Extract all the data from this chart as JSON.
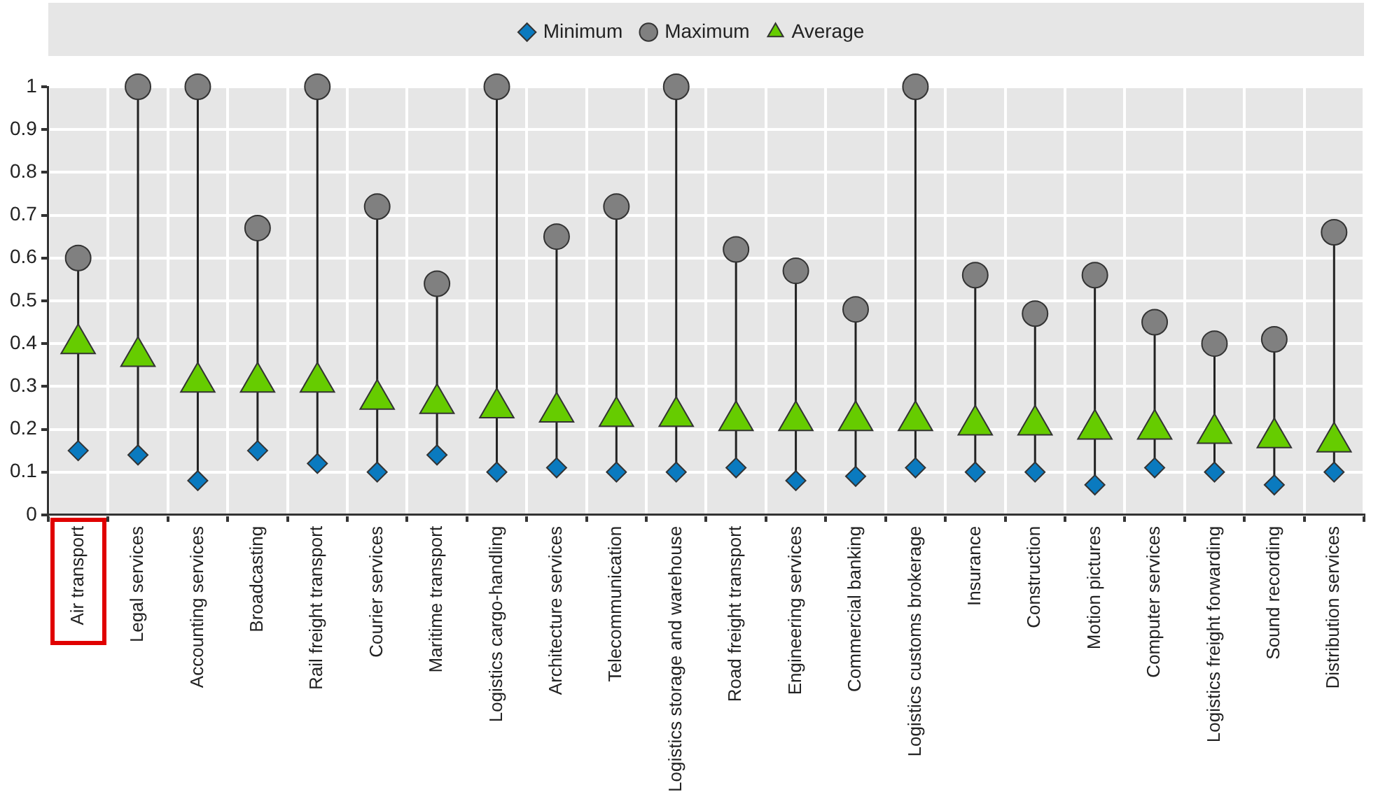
{
  "chart_data": {
    "type": "scatter",
    "categories": [
      "Air transport",
      "Legal services",
      "Accounting services",
      "Broadcasting",
      "Rail freight transport",
      "Courier services",
      "Maritime transport",
      "Logistics cargo-handling",
      "Architecture services",
      "Telecommunication",
      "Logistics storage and warehouse",
      "Road freight transport",
      "Engineering services",
      "Commercial banking",
      "Logistics customs brokerage",
      "Insurance",
      "Construction",
      "Motion pictures",
      "Computer services",
      "Logistics freight forwarding",
      "Sound recording",
      "Distribution services"
    ],
    "series": [
      {
        "name": "Minimum",
        "color": "#0a7abf",
        "marker": "diamond",
        "values": [
          0.15,
          0.14,
          0.08,
          0.15,
          0.12,
          0.1,
          0.14,
          0.1,
          0.11,
          0.1,
          0.1,
          0.11,
          0.08,
          0.09,
          0.11,
          0.1,
          0.1,
          0.07,
          0.11,
          0.1,
          0.07,
          0.1
        ]
      },
      {
        "name": "Maximum",
        "color": "#808080",
        "marker": "circle",
        "values": [
          0.6,
          1,
          1,
          0.67,
          1,
          0.72,
          0.54,
          1,
          0.65,
          0.72,
          1,
          0.62,
          0.57,
          0.48,
          1,
          0.56,
          0.47,
          0.56,
          0.45,
          0.4,
          0.41,
          0.66
        ]
      },
      {
        "name": "Average",
        "color": "#66cc00",
        "marker": "triangle",
        "values": [
          0.4,
          0.37,
          0.31,
          0.31,
          0.31,
          0.27,
          0.26,
          0.25,
          0.24,
          0.23,
          0.23,
          0.22,
          0.22,
          0.22,
          0.22,
          0.21,
          0.21,
          0.2,
          0.2,
          0.19,
          0.18,
          0.17
        ]
      }
    ],
    "ylim": [
      0,
      1
    ],
    "yticks": [
      0,
      0.1,
      0.2,
      0.3,
      0.4,
      0.5,
      0.6,
      0.7,
      0.8,
      0.9,
      1
    ],
    "grid": true,
    "legend": "top"
  }
}
